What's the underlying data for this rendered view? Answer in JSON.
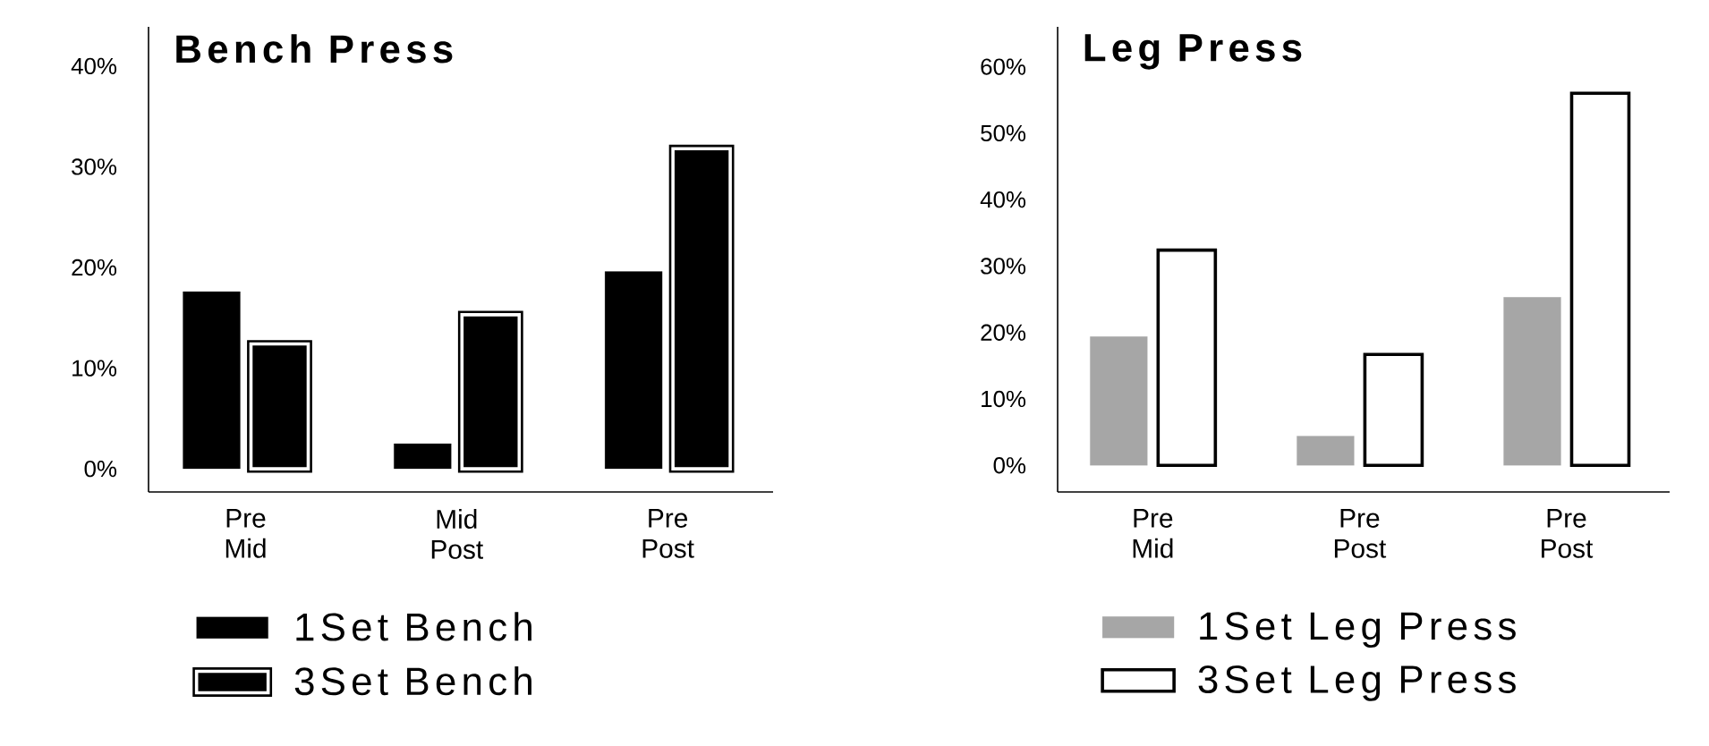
{
  "chart_data": [
    {
      "type": "bar",
      "title": "Bench Press",
      "categories": [
        "Pre Mid",
        "Mid Post",
        "Pre Post"
      ],
      "series": [
        {
          "name": "1Set Bench",
          "color": "#000000",
          "values": [
            17.6,
            2.5,
            19.6
          ]
        },
        {
          "name": "3Set Bench",
          "color": "#000000",
          "values": [
            12.4,
            15.3,
            31.8
          ]
        }
      ],
      "ylim": [
        -2.3,
        43.9
      ],
      "yticks": [
        {
          "value": 0,
          "label": "0%"
        },
        {
          "value": 10,
          "label": "10%"
        },
        {
          "value": 20,
          "label": "20%"
        },
        {
          "value": 30,
          "label": "30%"
        },
        {
          "value": 40,
          "label": "40%"
        }
      ],
      "legend": "bottom"
    },
    {
      "type": "bar",
      "title": "Leg Press",
      "categories": [
        "Pre Mid",
        "Pre Post",
        "Pre Post"
      ],
      "series": [
        {
          "name": "1Set Leg Press",
          "color": "#a6a6a6",
          "values": [
            19.4,
            4.4,
            25.3
          ]
        },
        {
          "name": "3Set Leg Press",
          "color": "#ffffff",
          "values": [
            32.4,
            16.7,
            56.0
          ]
        }
      ],
      "ylim": [
        -4,
        66
      ],
      "yticks": [
        {
          "value": 0,
          "label": "0%"
        },
        {
          "value": 10,
          "label": "10%"
        },
        {
          "value": 20,
          "label": "20%"
        },
        {
          "value": 30,
          "label": "30%"
        },
        {
          "value": 40,
          "label": "40%"
        },
        {
          "value": 50,
          "label": "50%"
        },
        {
          "value": 60,
          "label": "60%"
        }
      ],
      "legend": "bottom"
    }
  ]
}
